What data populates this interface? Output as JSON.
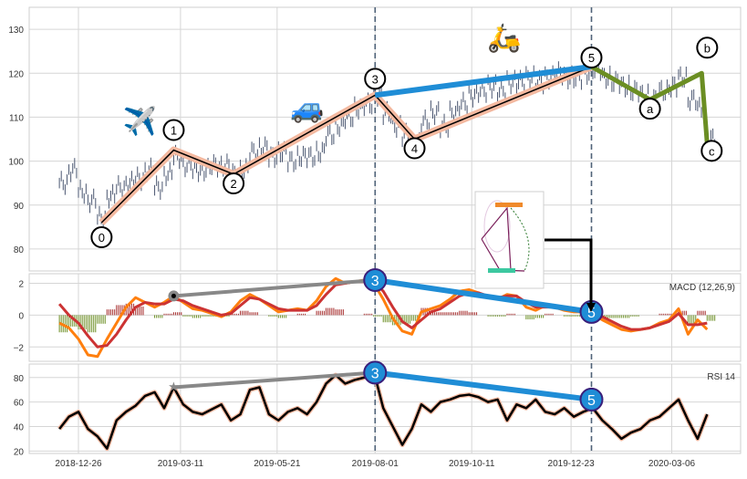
{
  "chart_data": {
    "type": "line",
    "title": "",
    "x_unit": "days since 2018-12-26",
    "x_tick_labels": [
      "2018-12-26",
      "2019-03-11",
      "2019-05-21",
      "2019-08-01",
      "2019-10-11",
      "2019-12-23",
      "2020-03-06"
    ],
    "x_tick_days": [
      0,
      75,
      146,
      218,
      289,
      362,
      436
    ],
    "x": [
      -14,
      -7,
      0,
      7,
      14,
      21,
      28,
      35,
      42,
      49,
      56,
      63,
      70,
      77,
      84,
      91,
      98,
      105,
      112,
      119,
      126,
      133,
      140,
      147,
      154,
      161,
      168,
      175,
      182,
      189,
      196,
      203,
      210,
      217,
      224,
      231,
      238,
      245,
      252,
      259,
      266,
      273,
      280,
      287,
      294,
      301,
      308,
      315,
      322,
      329,
      336,
      343,
      350,
      357,
      364,
      371,
      378,
      385,
      392,
      399,
      406,
      413,
      420,
      427,
      434,
      441,
      448,
      455,
      462
    ],
    "price_panel": {
      "ylim": [
        75,
        135
      ],
      "y_ticks": [
        80,
        90,
        100,
        110,
        120,
        130
      ],
      "close": [
        95,
        98,
        93,
        91,
        87,
        92,
        94,
        95,
        96,
        98,
        94,
        97,
        101,
        99,
        98,
        98,
        99,
        99,
        97,
        98,
        102,
        103,
        101,
        102,
        100,
        101,
        101,
        102,
        106,
        108,
        110,
        112,
        113,
        115,
        111,
        108,
        106,
        104,
        109,
        111,
        108,
        111,
        113,
        115,
        116,
        117,
        116,
        118,
        118,
        119,
        118,
        119,
        120,
        119,
        119,
        120,
        121,
        119,
        118,
        117,
        116,
        115,
        114,
        116,
        117,
        119,
        114,
        112,
        105
      ],
      "wave_points": [
        {
          "label": "0",
          "day": 17,
          "price": 86
        },
        {
          "label": "1",
          "day": 70,
          "price": 102.5
        },
        {
          "label": "2",
          "day": 114,
          "price": 97
        },
        {
          "label": "3",
          "day": 218,
          "price": 115
        },
        {
          "label": "4",
          "day": 247,
          "price": 105
        },
        {
          "label": "5",
          "day": 377,
          "price": 121.5
        },
        {
          "label": "a",
          "day": 420,
          "price": 114
        },
        {
          "label": "b",
          "day": 458,
          "price": 120
        },
        {
          "label": "c",
          "day": 462,
          "price": 104
        }
      ],
      "emojis": [
        {
          "name": "airplane",
          "glyph": "✈️",
          "day": 45,
          "price": 107
        },
        {
          "name": "car",
          "glyph": "🚙",
          "day": 168,
          "price": 110
        },
        {
          "name": "scooter",
          "glyph": "🛵",
          "day": 313,
          "price": 126
        }
      ]
    },
    "macd_panel": {
      "label": "MACD (12,26,9)",
      "ylim": [
        -2.9,
        2.6
      ],
      "y_ticks": [
        -2,
        0,
        2
      ],
      "macd": [
        -0.5,
        -0.8,
        -1.5,
        -2.5,
        -2.6,
        -1.5,
        -0.5,
        0.5,
        1.1,
        0.8,
        0.5,
        0.8,
        1.2,
        0.8,
        0.4,
        0.3,
        0.1,
        -0.1,
        0.2,
        0.9,
        1.3,
        1.0,
        0.6,
        0.2,
        0.3,
        0.4,
        0.3,
        0.9,
        1.8,
        2.3,
        2.0,
        2.1,
        2.2,
        2.0,
        1.0,
        -0.2,
        -1.0,
        -1.2,
        0.2,
        0.4,
        0.6,
        1.0,
        1.5,
        1.6,
        1.4,
        1.1,
        1.0,
        1.3,
        1.2,
        0.5,
        0.3,
        0.6,
        0.5,
        0.3,
        0.2,
        0.2,
        0.1,
        -0.3,
        -0.6,
        -0.9,
        -1.0,
        -0.9,
        -0.8,
        -0.5,
        -0.3,
        0.4,
        -1.2,
        -0.3,
        -0.9
      ],
      "signal": [
        0.7,
        0,
        -0.5,
        -1.3,
        -2.0,
        -1.9,
        -1.2,
        -0.3,
        0.5,
        0.8,
        0.7,
        0.7,
        1.0,
        0.9,
        0.6,
        0.4,
        0.2,
        0.0,
        0.1,
        0.6,
        1.1,
        1.0,
        0.7,
        0.4,
        0.3,
        0.3,
        0.3,
        0.6,
        1.3,
        1.9,
        2.0,
        2.1,
        2.1,
        2.1,
        1.5,
        0.5,
        -0.4,
        -0.8,
        -0.3,
        0.2,
        0.4,
        0.8,
        1.2,
        1.4,
        1.4,
        1.2,
        1.1,
        1.2,
        1.2,
        0.8,
        0.5,
        0.5,
        0.5,
        0.4,
        0.3,
        0.2,
        0.1,
        -0.1,
        -0.4,
        -0.7,
        -0.9,
        -0.9,
        -0.8,
        -0.6,
        -0.4,
        0.1,
        -0.6,
        -0.6,
        -0.5
      ],
      "divergence": {
        "start": {
          "day": 70,
          "value": 1.2
        },
        "peak3": {
          "label": "3",
          "day": 218,
          "value": 2.2
        },
        "peak5": {
          "label": "5",
          "day": 377,
          "value": 0.2
        }
      }
    },
    "rsi_panel": {
      "label": "RSI 14",
      "ylim": [
        18,
        91
      ],
      "y_ticks": [
        20,
        40,
        60,
        80
      ],
      "rsi": [
        38,
        48,
        52,
        38,
        32,
        22,
        45,
        52,
        57,
        65,
        68,
        55,
        72,
        58,
        52,
        50,
        54,
        58,
        45,
        50,
        70,
        72,
        50,
        45,
        52,
        55,
        50,
        60,
        75,
        82,
        75,
        78,
        80,
        85,
        55,
        40,
        25,
        38,
        58,
        52,
        60,
        62,
        65,
        66,
        64,
        60,
        62,
        45,
        58,
        55,
        62,
        52,
        50,
        55,
        48,
        52,
        55,
        45,
        38,
        30,
        35,
        38,
        45,
        48,
        55,
        62,
        45,
        30,
        50
      ],
      "divergence": {
        "start": {
          "day": 70,
          "value": 72
        },
        "peak3": {
          "label": "3",
          "day": 218,
          "value": 84
        },
        "peak5": {
          "label": "5",
          "day": 377,
          "value": 62
        }
      }
    },
    "colors": {
      "candle": "#4a5670",
      "wave_fill": "#f4b9a0",
      "wave_line": "#000000",
      "wave35": "#1f8dd6",
      "abc": "#6b8e23",
      "macd": "#ff7f0e",
      "signal": "#cc3333",
      "hist_pos": "#a52a2a",
      "hist_neg": "#6b8e23",
      "rsi": "#000000",
      "rsi_glow": "#f4b9a0",
      "div_gray": "#888888",
      "vline": "#4f6278",
      "badge": "#1f8dd6",
      "badge_stroke": "#3a1f7a"
    }
  }
}
